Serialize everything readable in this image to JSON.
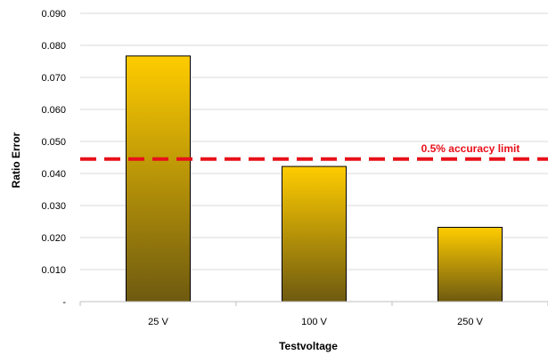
{
  "chart_data": {
    "type": "bar",
    "categories": [
      "25 V",
      "100 V",
      "250 V"
    ],
    "values": [
      0.0767,
      0.0422,
      0.0232
    ],
    "xlabel": "Testvoltage",
    "ylabel": "Ratio Error",
    "ylim": [
      0,
      0.09
    ],
    "yticks": [
      0,
      0.01,
      0.02,
      0.03,
      0.04,
      0.05,
      0.06,
      0.07,
      0.08,
      0.09
    ],
    "ytick_labels": [
      "-",
      "0.010",
      "0.020",
      "0.030",
      "0.040",
      "0.050",
      "0.060",
      "0.070",
      "0.080",
      "0.090"
    ],
    "grid": true,
    "legend": "none",
    "reference_line": {
      "value": 0.0445,
      "label": "0.5% accuracy limit",
      "color": "#e8101a",
      "style": "dashed"
    },
    "bar_gradient": {
      "top": "#ffcc00",
      "bottom": "#6e5a10"
    }
  }
}
